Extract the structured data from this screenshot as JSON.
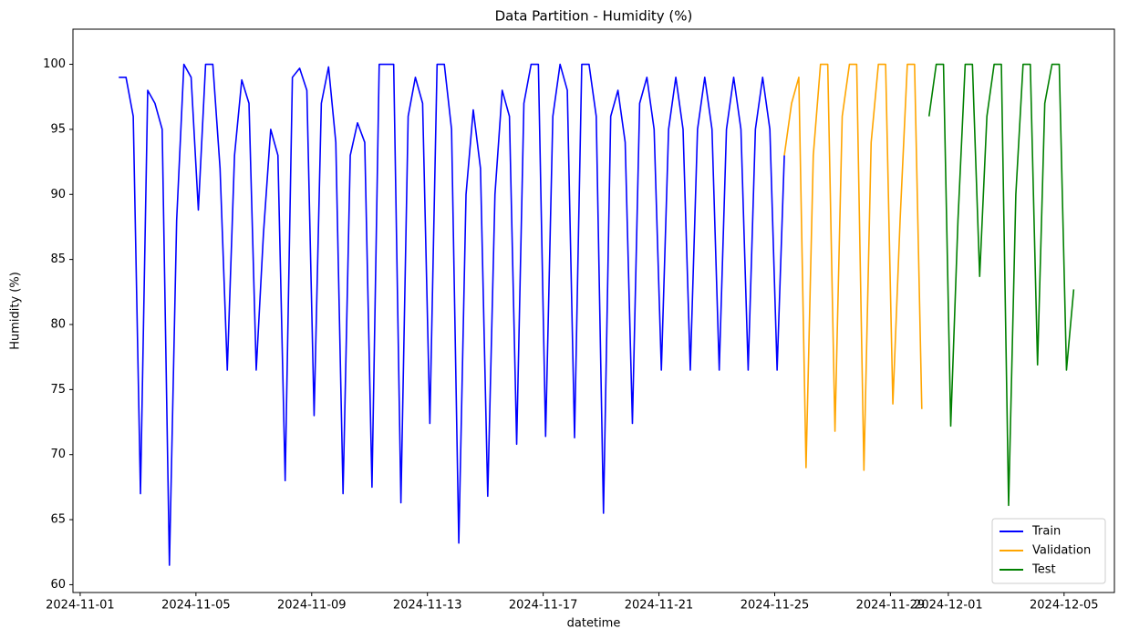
{
  "chart_data": {
    "type": "line",
    "title": "Data Partition - Humidity (%)",
    "x_label": "datetime",
    "y_label": "Humidity (%)",
    "xlim": [
      "2024-10-31T18:00",
      "2024-12-06T17:45"
    ],
    "xticks": [
      "2024-11-01",
      "2024-11-05",
      "2024-11-09",
      "2024-11-13",
      "2024-11-17",
      "2024-11-21",
      "2024-11-25",
      "2024-11-29",
      "2024-12-01",
      "2024-12-05"
    ],
    "ylim": [
      59.4,
      102.7
    ],
    "yticks": [
      60,
      65,
      70,
      75,
      80,
      85,
      90,
      95,
      100
    ],
    "grid": false,
    "legend": "lower right",
    "series": [
      {
        "name": "Train",
        "color": "#0000ff",
        "x": [
          "2024-11-02T08:00",
          "2024-11-02T14:00",
          "2024-11-02T20:00",
          "2024-11-03T02:00",
          "2024-11-03T08:00",
          "2024-11-03T14:00",
          "2024-11-03T20:00",
          "2024-11-04T02:00",
          "2024-11-04T08:00",
          "2024-11-04T14:00",
          "2024-11-04T20:00",
          "2024-11-05T02:00",
          "2024-11-05T08:00",
          "2024-11-05T14:00",
          "2024-11-05T20:00",
          "2024-11-06T02:00",
          "2024-11-06T08:00",
          "2024-11-06T14:00",
          "2024-11-06T20:00",
          "2024-11-07T02:00",
          "2024-11-07T08:00",
          "2024-11-07T14:00",
          "2024-11-07T20:00",
          "2024-11-08T02:00",
          "2024-11-08T08:00",
          "2024-11-08T14:00",
          "2024-11-08T20:00",
          "2024-11-09T02:00",
          "2024-11-09T08:00",
          "2024-11-09T14:00",
          "2024-11-09T20:00",
          "2024-11-10T02:00",
          "2024-11-10T08:00",
          "2024-11-10T14:00",
          "2024-11-10T20:00",
          "2024-11-11T02:00",
          "2024-11-11T08:00",
          "2024-11-11T14:00",
          "2024-11-11T20:00",
          "2024-11-12T02:00",
          "2024-11-12T08:00",
          "2024-11-12T14:00",
          "2024-11-12T20:00",
          "2024-11-13T02:00",
          "2024-11-13T08:00",
          "2024-11-13T14:00",
          "2024-11-13T20:00",
          "2024-11-14T02:00",
          "2024-11-14T08:00",
          "2024-11-14T14:00",
          "2024-11-14T20:00",
          "2024-11-15T02:00",
          "2024-11-15T08:00",
          "2024-11-15T14:00",
          "2024-11-15T20:00",
          "2024-11-16T02:00",
          "2024-11-16T08:00",
          "2024-11-16T14:00",
          "2024-11-16T20:00",
          "2024-11-17T02:00",
          "2024-11-17T08:00",
          "2024-11-17T14:00",
          "2024-11-17T20:00",
          "2024-11-18T02:00",
          "2024-11-18T08:00",
          "2024-11-18T14:00",
          "2024-11-18T20:00",
          "2024-11-19T02:00",
          "2024-11-19T08:00",
          "2024-11-19T14:00",
          "2024-11-19T20:00",
          "2024-11-20T02:00",
          "2024-11-20T08:00",
          "2024-11-20T14:00",
          "2024-11-20T20:00",
          "2024-11-21T02:00",
          "2024-11-21T08:00",
          "2024-11-21T14:00",
          "2024-11-21T20:00",
          "2024-11-22T02:00",
          "2024-11-22T08:00",
          "2024-11-22T14:00",
          "2024-11-22T20:00",
          "2024-11-23T02:00",
          "2024-11-23T08:00",
          "2024-11-23T14:00",
          "2024-11-23T20:00",
          "2024-11-24T02:00",
          "2024-11-24T08:00",
          "2024-11-24T14:00",
          "2024-11-24T20:00",
          "2024-11-25T02:00",
          "2024-11-25T08:00"
        ],
        "values": [
          99,
          99,
          96,
          67,
          98,
          97,
          95,
          61.5,
          88,
          100,
          99,
          88.8,
          100,
          100,
          92,
          76.5,
          93,
          98.8,
          97,
          76.5,
          87,
          95,
          93,
          68,
          99,
          99.7,
          98,
          73,
          97,
          99.8,
          94,
          67,
          93,
          95.5,
          94,
          67.5,
          100,
          100,
          100,
          66.3,
          96,
          99,
          97,
          72.4,
          100,
          100,
          95,
          63.2,
          90,
          96.5,
          92,
          66.8,
          90,
          98,
          96,
          70.8,
          97,
          100,
          100,
          71.4,
          96,
          100,
          98,
          71.3,
          100,
          100,
          96,
          65.5,
          96,
          98,
          94,
          72.4,
          97,
          99,
          95,
          76.5,
          95,
          99,
          95,
          76.5,
          95,
          99,
          95,
          76.5,
          95,
          99,
          95,
          76.5,
          95,
          99,
          95,
          76.5,
          93
        ]
      },
      {
        "name": "Validation",
        "color": "#ffa500",
        "x": [
          "2024-11-25T08:00",
          "2024-11-25T14:00",
          "2024-11-25T20:00",
          "2024-11-26T02:00",
          "2024-11-26T08:00",
          "2024-11-26T14:00",
          "2024-11-26T20:00",
          "2024-11-27T02:00",
          "2024-11-27T08:00",
          "2024-11-27T14:00",
          "2024-11-27T20:00",
          "2024-11-28T02:00",
          "2024-11-28T08:00",
          "2024-11-28T14:00",
          "2024-11-28T20:00",
          "2024-11-29T02:00",
          "2024-11-29T08:00",
          "2024-11-29T14:00",
          "2024-11-29T20:00",
          "2024-11-30T02:00"
        ],
        "values": [
          93,
          97,
          99,
          69,
          93,
          100,
          100,
          71.8,
          96,
          100,
          100,
          68.8,
          94,
          100,
          100,
          73.9,
          88,
          100,
          100,
          73.5
        ]
      },
      {
        "name": "Test",
        "color": "#008000",
        "x": [
          "2024-11-30T08:00",
          "2024-11-30T14:00",
          "2024-11-30T20:00",
          "2024-12-01T02:00",
          "2024-12-01T08:00",
          "2024-12-01T14:00",
          "2024-12-01T20:00",
          "2024-12-02T02:00",
          "2024-12-02T08:00",
          "2024-12-02T14:00",
          "2024-12-02T20:00",
          "2024-12-03T02:00",
          "2024-12-03T08:00",
          "2024-12-03T14:00",
          "2024-12-03T20:00",
          "2024-12-04T02:00",
          "2024-12-04T08:00",
          "2024-12-04T14:00",
          "2024-12-04T20:00",
          "2024-12-05T02:00",
          "2024-12-05T08:00"
        ],
        "values": [
          96,
          100,
          100,
          72.2,
          88,
          100,
          100,
          83.7,
          96,
          100,
          100,
          66.1,
          90,
          100,
          100,
          76.9,
          97,
          100,
          100,
          76.5,
          82.7
        ]
      }
    ]
  }
}
